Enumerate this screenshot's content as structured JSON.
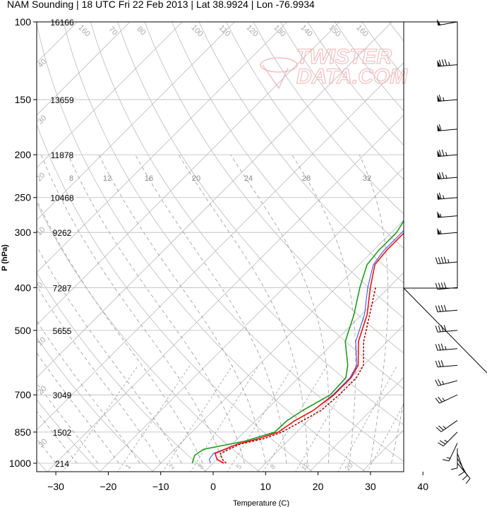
{
  "title": "NAM Sounding | 18 UTC Fri 22 Feb 2013 | Lat 38.9924 | Lon -76.9934",
  "watermark": "TWISTER DATA.COM",
  "chart_data": {
    "type": "skew-t",
    "xlabel": "Temperature (C)",
    "ylabel": "P (hPa)",
    "x_ticks": [
      -30,
      -20,
      -10,
      0,
      10,
      20,
      30,
      40
    ],
    "pressure_ticks": [
      100,
      150,
      200,
      250,
      300,
      400,
      500,
      700,
      850,
      1000
    ],
    "heights_m": [
      {
        "p": 100,
        "z": "16166"
      },
      {
        "p": 150,
        "z": "13659"
      },
      {
        "p": 200,
        "z": "11878"
      },
      {
        "p": 250,
        "z": "10468"
      },
      {
        "p": 300,
        "z": "9262"
      },
      {
        "p": 400,
        "z": "7287"
      },
      {
        "p": 500,
        "z": "5655"
      },
      {
        "p": 700,
        "z": "3049"
      },
      {
        "p": 850,
        "z": "1502"
      },
      {
        "p": 1000,
        "z": "214"
      }
    ],
    "mixing_ratio_labels": [
      "8",
      "12",
      "16",
      "20",
      "24",
      "28",
      "32"
    ],
    "isotherm_labels": [
      "160",
      "70",
      "80",
      "100",
      "110",
      "120",
      "130",
      "140",
      "150",
      "160"
    ],
    "dry_adiabat_labels": [
      "40",
      "30",
      "20",
      "10",
      "0",
      "10",
      "20",
      "30",
      "40",
      "30",
      "20",
      "10",
      "0"
    ],
    "low_labels": [
      "1",
      "2",
      "3",
      "5",
      "8",
      "12",
      "20"
    ],
    "colors": {
      "temperature": "#ee1111",
      "virtual_temperature": "#3344ee",
      "dewpoint": "#229922",
      "parcel": "#990000",
      "grid": "#bbbbbb"
    },
    "series": [
      {
        "name": "temperature",
        "points": [
          [
            100,
            10.5
          ],
          [
            130,
            3.5
          ],
          [
            150,
            -3.5
          ],
          [
            180,
            -10.5
          ],
          [
            200,
            -11.5
          ],
          [
            230,
            -11.5
          ],
          [
            260,
            -8.5
          ],
          [
            300,
            -7.5
          ],
          [
            330,
            -7.5
          ],
          [
            355,
            -7.0
          ],
          [
            400,
            -3.5
          ],
          [
            460,
            1.0
          ],
          [
            530,
            4.5
          ],
          [
            600,
            9.0
          ],
          [
            640,
            10.0
          ],
          [
            700,
            10.0
          ],
          [
            760,
            9.0
          ],
          [
            800,
            7.5
          ],
          [
            850,
            6.5
          ],
          [
            880,
            4.0
          ],
          [
            905,
            1.0
          ],
          [
            950,
            -1.5
          ],
          [
            980,
            0.0
          ],
          [
            1000,
            2.0
          ]
        ]
      },
      {
        "name": "virtual temperature",
        "points": [
          [
            100,
            10.0
          ],
          [
            130,
            3.0
          ],
          [
            150,
            -4.0
          ],
          [
            180,
            -10.8
          ],
          [
            200,
            -11.8
          ],
          [
            230,
            -11.5
          ],
          [
            260,
            -9.0
          ],
          [
            300,
            -8.0
          ],
          [
            330,
            -8.0
          ],
          [
            355,
            -7.3
          ],
          [
            400,
            -4.0
          ],
          [
            460,
            0.5
          ],
          [
            530,
            4.0
          ],
          [
            600,
            8.7
          ],
          [
            640,
            9.8
          ],
          [
            700,
            9.8
          ],
          [
            760,
            9.0
          ],
          [
            800,
            7.5
          ],
          [
            850,
            6.5
          ],
          [
            880,
            4.0
          ],
          [
            905,
            1.0
          ],
          [
            950,
            -1.8
          ],
          [
            980,
            -1.5
          ],
          [
            1000,
            -0.5
          ]
        ]
      },
      {
        "name": "dewpoint",
        "points": [
          [
            100,
            -6.0
          ],
          [
            120,
            -13.5
          ],
          [
            150,
            -12.0
          ],
          [
            180,
            -13.0
          ],
          [
            200,
            -13.5
          ],
          [
            250,
            -11.5
          ],
          [
            300,
            -9.0
          ],
          [
            330,
            -9.0
          ],
          [
            355,
            -8.5
          ],
          [
            400,
            -5.5
          ],
          [
            460,
            -1.5
          ],
          [
            530,
            2.0
          ],
          [
            600,
            7.0
          ],
          [
            640,
            9.0
          ],
          [
            700,
            9.3
          ],
          [
            760,
            7.0
          ],
          [
            800,
            6.0
          ],
          [
            850,
            5.8
          ],
          [
            890,
            2.0
          ],
          [
            930,
            -4.5
          ],
          [
            960,
            -5.0
          ],
          [
            1000,
            -4.0
          ]
        ]
      },
      {
        "name": "parcel",
        "points": [
          [
            400,
            -2.5
          ],
          [
            460,
            1.5
          ],
          [
            530,
            5.5
          ],
          [
            600,
            10.0
          ],
          [
            640,
            11.0
          ],
          [
            700,
            11.0
          ],
          [
            760,
            10.5
          ],
          [
            800,
            9.0
          ],
          [
            850,
            7.2
          ],
          [
            880,
            5.0
          ],
          [
            905,
            1.5
          ],
          [
            950,
            -0.5
          ],
          [
            980,
            1.0
          ],
          [
            1000,
            2.5
          ]
        ]
      }
    ],
    "wind_barbs": [
      {
        "p": 100,
        "dir": 260,
        "kt": 50
      },
      {
        "p": 125,
        "dir": 265,
        "kt": 85
      },
      {
        "p": 150,
        "dir": 265,
        "kt": 65
      },
      {
        "p": 175,
        "dir": 265,
        "kt": 60
      },
      {
        "p": 200,
        "dir": 265,
        "kt": 75
      },
      {
        "p": 225,
        "dir": 265,
        "kt": 75
      },
      {
        "p": 250,
        "dir": 265,
        "kt": 65
      },
      {
        "p": 275,
        "dir": 265,
        "kt": 55
      },
      {
        "p": 300,
        "dir": 265,
        "kt": 55
      },
      {
        "p": 350,
        "dir": 265,
        "kt": 45
      },
      {
        "p": 400,
        "dir": 265,
        "kt": 40
      },
      {
        "p": 450,
        "dir": 265,
        "kt": 40
      },
      {
        "p": 500,
        "dir": 265,
        "kt": 40
      },
      {
        "p": 550,
        "dir": 265,
        "kt": 35
      },
      {
        "p": 600,
        "dir": 265,
        "kt": 30
      },
      {
        "p": 650,
        "dir": 255,
        "kt": 25
      },
      {
        "p": 700,
        "dir": 245,
        "kt": 25
      },
      {
        "p": 800,
        "dir": 235,
        "kt": 25
      },
      {
        "p": 850,
        "dir": 225,
        "kt": 25
      },
      {
        "p": 900,
        "dir": 205,
        "kt": 15
      },
      {
        "p": 925,
        "dir": 180,
        "kt": 10
      },
      {
        "p": 950,
        "dir": 160,
        "kt": 10
      },
      {
        "p": 975,
        "dir": 150,
        "kt": 10
      },
      {
        "p": 1000,
        "dir": 140,
        "kt": 10
      }
    ]
  }
}
